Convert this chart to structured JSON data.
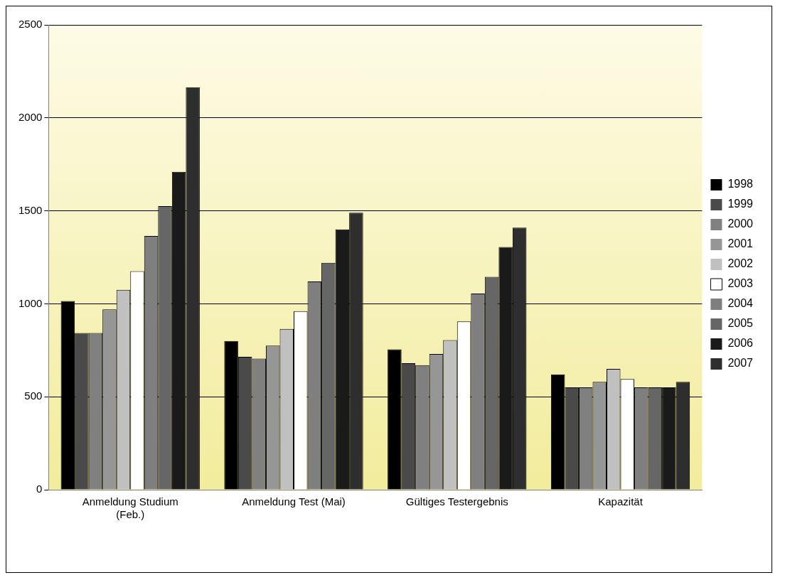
{
  "chart_data": {
    "type": "bar",
    "categories": [
      "Anmeldung Studium (Feb.)",
      "Anmeldung Test (Mai)",
      "Gültiges Testergebnis",
      "Kapazität"
    ],
    "series": [
      {
        "name": "1998",
        "color": "#000000",
        "values": [
          1015,
          800,
          755,
          620
        ]
      },
      {
        "name": "1999",
        "color": "#4a4a4a",
        "values": [
          843,
          715,
          680,
          550
        ]
      },
      {
        "name": "2000",
        "color": "#808080",
        "values": [
          843,
          705,
          670,
          550
        ]
      },
      {
        "name": "2001",
        "color": "#969696",
        "values": [
          970,
          775,
          730,
          580
        ]
      },
      {
        "name": "2002",
        "color": "#c0c0c0",
        "values": [
          1075,
          865,
          805,
          650
        ]
      },
      {
        "name": "2003",
        "color": "#ffffff",
        "values": [
          1175,
          960,
          905,
          595
        ]
      },
      {
        "name": "2004",
        "color": "#7f7f7f",
        "values": [
          1365,
          1120,
          1055,
          550
        ]
      },
      {
        "name": "2005",
        "color": "#666666",
        "values": [
          1525,
          1220,
          1145,
          550
        ]
      },
      {
        "name": "2006",
        "color": "#1a1a1a",
        "values": [
          1710,
          1400,
          1305,
          550
        ]
      },
      {
        "name": "2007",
        "color": "#2e2e2e",
        "values": [
          2165,
          1490,
          1410,
          580
        ]
      }
    ],
    "ylim": [
      0,
      2500
    ],
    "yticks": [
      0,
      500,
      1000,
      1500,
      2000,
      2500
    ],
    "grid": "y",
    "legend": "right"
  }
}
